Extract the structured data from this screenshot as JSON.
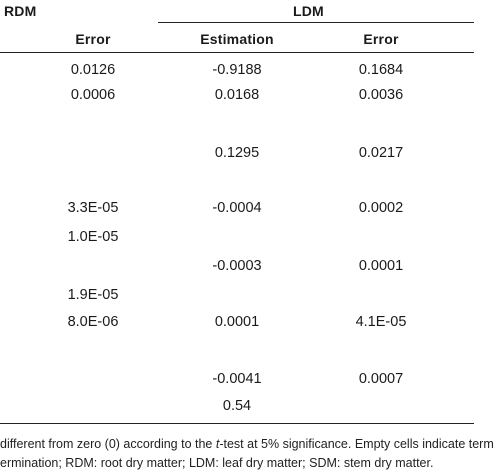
{
  "header": {
    "group_rdm": "RDM",
    "group_ldm": "LDM",
    "col_error_rdm": "Error",
    "col_estimation_ldm": "Estimation",
    "col_error_ldm": "Error"
  },
  "rows": [
    {
      "rdm_error": "0.0126",
      "ldm_estimation": "-0.9188",
      "ldm_error": "0.1684"
    },
    {
      "rdm_error": "0.0006",
      "ldm_estimation": "0.0168",
      "ldm_error": "0.0036"
    },
    {
      "rdm_error": "",
      "ldm_estimation": "0.1295",
      "ldm_error": "0.0217"
    },
    {
      "rdm_error": "3.3E-05",
      "ldm_estimation": "-0.0004",
      "ldm_error": "0.0002"
    },
    {
      "rdm_error": "1.0E-05",
      "ldm_estimation": "",
      "ldm_error": ""
    },
    {
      "rdm_error": "",
      "ldm_estimation": "-0.0003",
      "ldm_error": "0.0001"
    },
    {
      "rdm_error": "1.9E-05",
      "ldm_estimation": "",
      "ldm_error": ""
    },
    {
      "rdm_error": "8.0E-06",
      "ldm_estimation": "0.0001",
      "ldm_error": "4.1E-05"
    },
    {
      "rdm_error": "",
      "ldm_estimation": "-0.0041",
      "ldm_error": "0.0007"
    },
    {
      "rdm_error": "",
      "ldm_estimation": "0.54",
      "ldm_error": ""
    }
  ],
  "footnote": {
    "line1_pre": "different from zero (0) according to the ",
    "line1_italic": "t",
    "line1_post": "-test at 5% significance. Empty cells indicate term",
    "line2": "ermination; RDM: root dry matter; LDM: leaf dry matter; SDM: stem dry matter."
  }
}
